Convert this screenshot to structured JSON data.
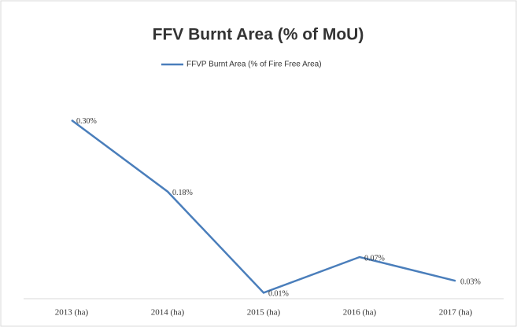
{
  "chart_data": {
    "type": "line",
    "title": "FFV Burnt Area (% of MoU)",
    "categories": [
      "2013 (ha)",
      "2014 (ha)",
      "2015 (ha)",
      "2016 (ha)",
      "2017 (ha)"
    ],
    "series": [
      {
        "name": "FFVP Burnt Area (% of Fire Free Area)",
        "color": "#4a7ebb",
        "values": [
          0.3,
          0.18,
          0.01,
          0.07,
          0.03
        ],
        "value_labels": [
          "0.30%",
          "0.18%",
          "0.01%",
          "0.07%",
          "0.03%"
        ]
      }
    ],
    "ylim": [
      0,
      0.35
    ],
    "legend": "top"
  }
}
